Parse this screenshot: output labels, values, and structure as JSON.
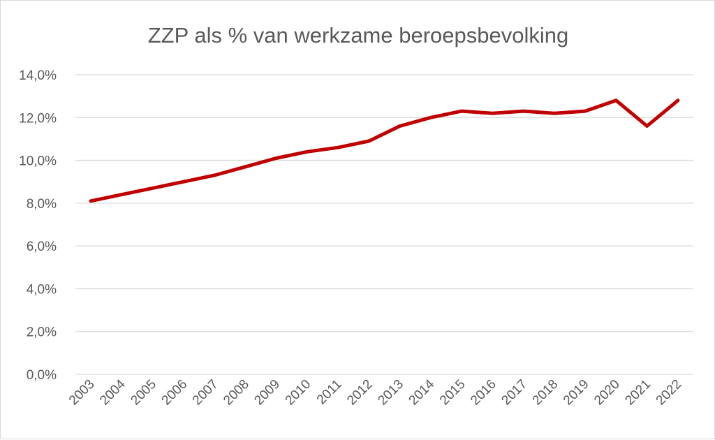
{
  "chart_data": {
    "type": "line",
    "title": "ZZP als % van werkzame beroepsbevolking",
    "categories": [
      "2003",
      "2004",
      "2005",
      "2006",
      "2007",
      "2008",
      "2009",
      "2010",
      "2011",
      "2012",
      "2013",
      "2014",
      "2015",
      "2016",
      "2017",
      "2018",
      "2019",
      "2020",
      "2021",
      "2022"
    ],
    "series": [
      {
        "values": [
          8.1,
          8.4,
          8.7,
          9.0,
          9.3,
          9.7,
          10.1,
          10.4,
          10.6,
          10.9,
          11.6,
          12.0,
          12.3,
          12.2,
          12.3,
          12.2,
          12.3,
          12.8,
          11.6,
          12.8
        ],
        "color": "#c00000"
      }
    ],
    "y_ticks": [
      "0,0%",
      "2,0%",
      "4,0%",
      "6,0%",
      "8,0%",
      "10,0%",
      "12,0%",
      "14,0%"
    ],
    "ylim": [
      0,
      14
    ],
    "grid": true,
    "legend": "none"
  }
}
